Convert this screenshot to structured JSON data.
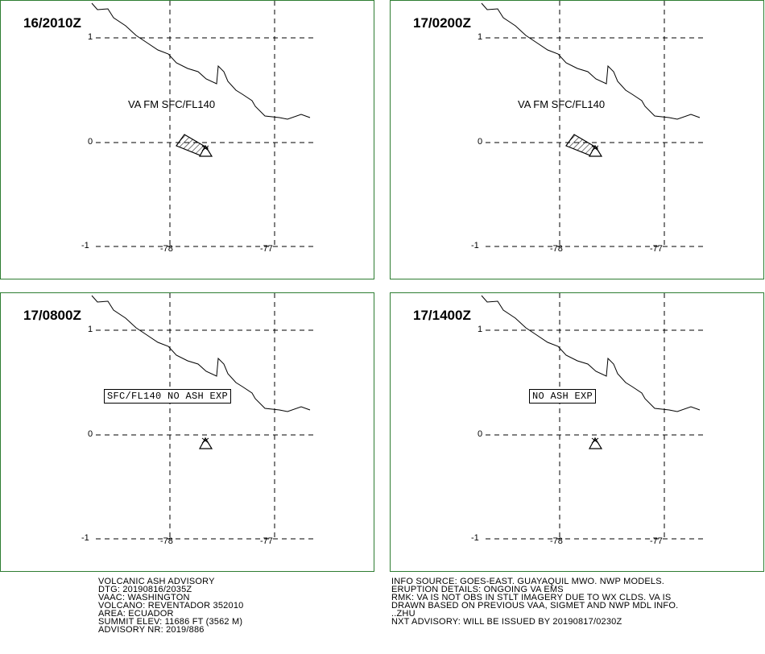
{
  "panels": [
    {
      "time": "16/2010Z",
      "label": "VA FM SFC/FL140",
      "label_boxed": false,
      "ash": true
    },
    {
      "time": "17/0200Z",
      "label": "VA FM SFC/FL140",
      "label_boxed": false,
      "ash": true
    },
    {
      "time": "17/0800Z",
      "label": "SFC/FL140 NO ASH EXP",
      "label_boxed": true,
      "ash": false
    },
    {
      "time": "17/1400Z",
      "label": "NO ASH EXP",
      "label_boxed": true,
      "ash": false
    }
  ],
  "grid": {
    "lat_labels": [
      "1",
      "0",
      "-1"
    ],
    "lon_labels": [
      "-78",
      "-77"
    ]
  },
  "advisory": {
    "lines": [
      "VOLCANIC ASH ADVISORY",
      "DTG: 20190816/2035Z",
      "VAAC: WASHINGTON",
      "VOLCANO: REVENTADOR 352010",
      "AREA: ECUADOR",
      "SUMMIT ELEV: 11686 FT (3562 M)",
      "ADVISORY NR: 2019/886"
    ]
  },
  "info": {
    "lines": [
      "INFO SOURCE: GOES-EAST. GUAYAQUIL MWO. NWP MODELS.",
      "ERUPTION DETAILS: ONGOING VA EMS",
      "RMK: VA IS NOT OBS IN STLT IMAGERY DUE TO WX CLDS. VA IS",
      "DRAWN BASED ON PREVIOUS VAA, SIGMET AND NWP MDL INFO.",
      "..ZHU",
      "NXT ADVISORY: WILL BE ISSUED BY 20190817/0230Z"
    ]
  },
  "colors": {
    "panel_border": "#2e7d32"
  },
  "icons": {
    "volcano": "volcano-triangle-icon"
  }
}
